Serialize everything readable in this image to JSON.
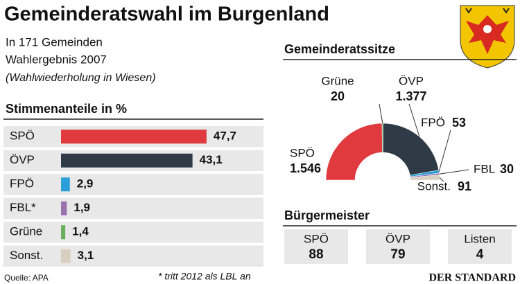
{
  "header": {
    "title": "Gemeinderatswahl im Burgenland",
    "lines": [
      "In 171 Gemeinden",
      "Wahlergebnis 2007",
      "(Wahlwiederholung in Wiesen)"
    ]
  },
  "chart_data": [
    {
      "type": "bar",
      "title": "Stimmenanteile in %",
      "categories": [
        "SPÖ",
        "ÖVP",
        "FPÖ",
        "FBL*",
        "Grüne",
        "Sonst."
      ],
      "values": [
        47.7,
        43.1,
        2.9,
        1.9,
        1.4,
        3.1
      ],
      "value_labels": [
        "47,7",
        "43,1",
        "2,9",
        "1,9",
        "1,4",
        "3,1"
      ],
      "colors": [
        "#e0393e",
        "#2e3a46",
        "#2a9fd8",
        "#9a72ae",
        "#6aae5c",
        "#d8cfc0"
      ],
      "xlim": [
        0,
        50
      ]
    },
    {
      "type": "pie",
      "title": "Gemeinderatssitze",
      "categories": [
        "SPÖ",
        "Grüne",
        "ÖVP",
        "FPÖ",
        "FBL",
        "Sonst."
      ],
      "values": [
        1546,
        20,
        1377,
        53,
        30,
        91
      ],
      "value_labels": [
        "1.546",
        "20",
        "1.377",
        "53",
        "30",
        "91"
      ],
      "colors": [
        "#e0393e",
        "#6aae5c",
        "#2e3a46",
        "#2a9fd8",
        "#9a72ae",
        "#d8cfc0"
      ]
    }
  ],
  "mayors": {
    "title": "Bürgermeister",
    "categories": [
      "SPÖ",
      "ÖVP",
      "Listen"
    ],
    "values": [
      "88",
      "79",
      "4"
    ]
  },
  "footer": {
    "source": "Quelle: APA",
    "note": "* tritt 2012 als LBL an",
    "brand": "DER STANDARD"
  }
}
